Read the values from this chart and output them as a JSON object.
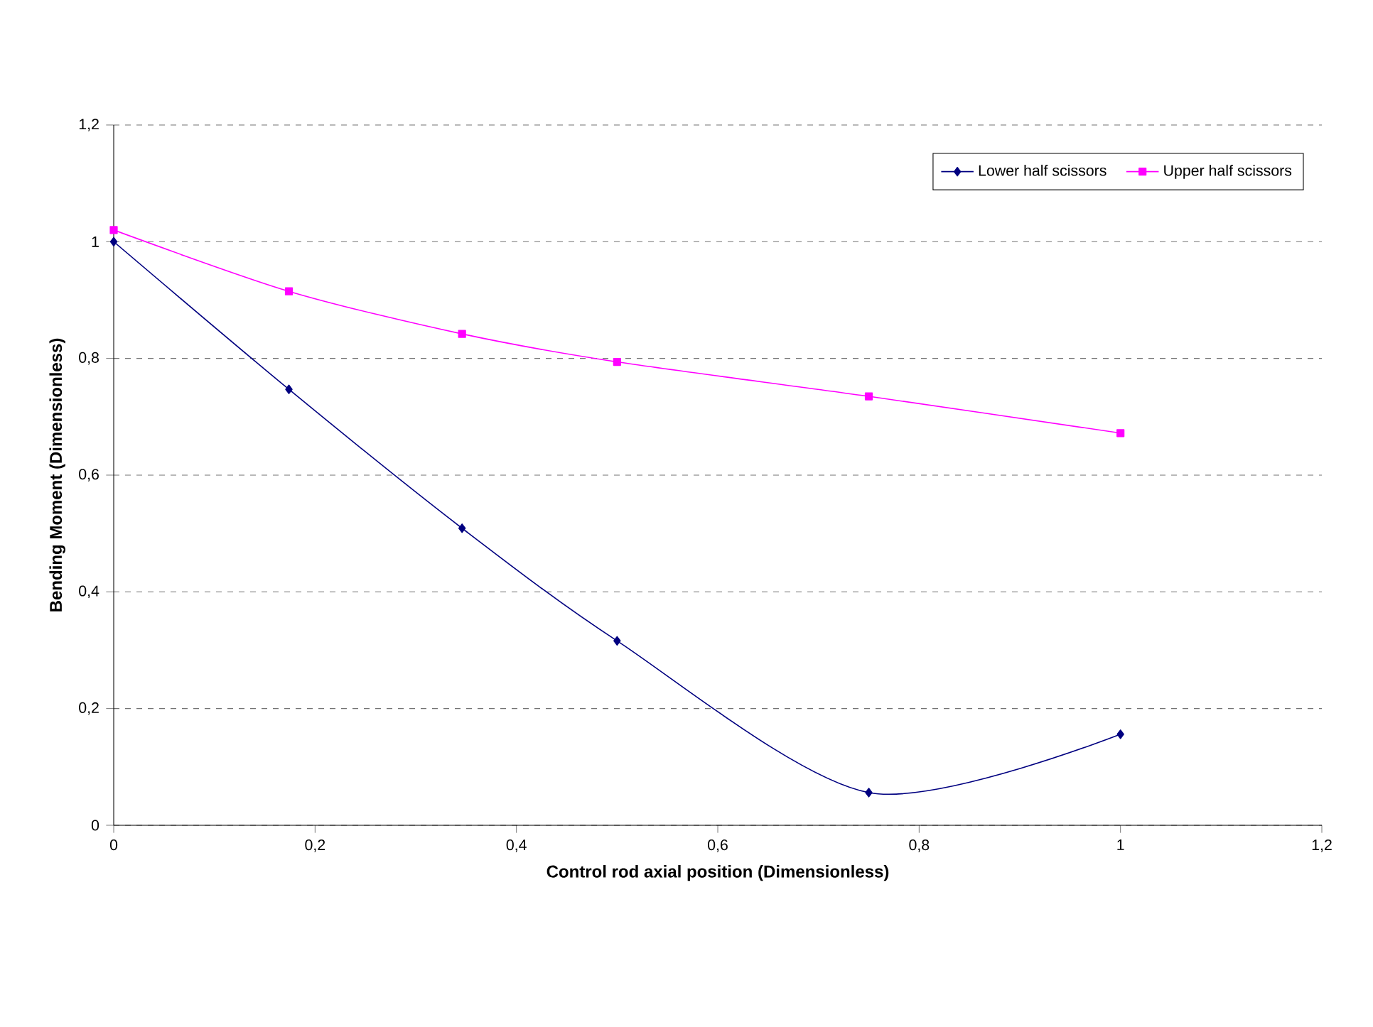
{
  "chart_data": {
    "type": "line",
    "xlabel": "Control rod axial position (Dimensionless)",
    "ylabel": "Bending Moment (Dimensionless)",
    "xlim": [
      0,
      1.2
    ],
    "ylim": [
      0,
      1.2
    ],
    "xticks": [
      0,
      {
        "value": 0.2,
        "label": "0,2"
      },
      {
        "value": 0.4,
        "label": "0,4"
      },
      {
        "value": 0.6,
        "label": "0,6"
      },
      {
        "value": 0.8,
        "label": "0,8"
      },
      1,
      {
        "value": 1.2,
        "label": "1,2"
      }
    ],
    "yticks": [
      0,
      {
        "value": 0.2,
        "label": "0,2"
      },
      {
        "value": 0.4,
        "label": "0,4"
      },
      {
        "value": 0.6,
        "label": "0,6"
      },
      {
        "value": 0.8,
        "label": "0,8"
      },
      1,
      {
        "value": 1.2,
        "label": "1,2"
      }
    ],
    "grid": "y",
    "legend": "top right",
    "line_style": "solid",
    "series": [
      {
        "name": "Lower half scissors",
        "color": "#000080",
        "marker": "diamond",
        "x": [
          0,
          0.174,
          0.346,
          0.5,
          0.75,
          1
        ],
        "values": [
          1.0,
          0.747,
          0.509,
          0.316,
          0.056,
          0.156
        ]
      },
      {
        "name": "Upper half scissors",
        "color": "#ff00ff",
        "marker": "square",
        "x": [
          0,
          0.174,
          0.346,
          0.5,
          0.75,
          1
        ],
        "values": [
          1.02,
          0.915,
          0.842,
          0.794,
          0.735,
          0.672
        ]
      }
    ]
  }
}
